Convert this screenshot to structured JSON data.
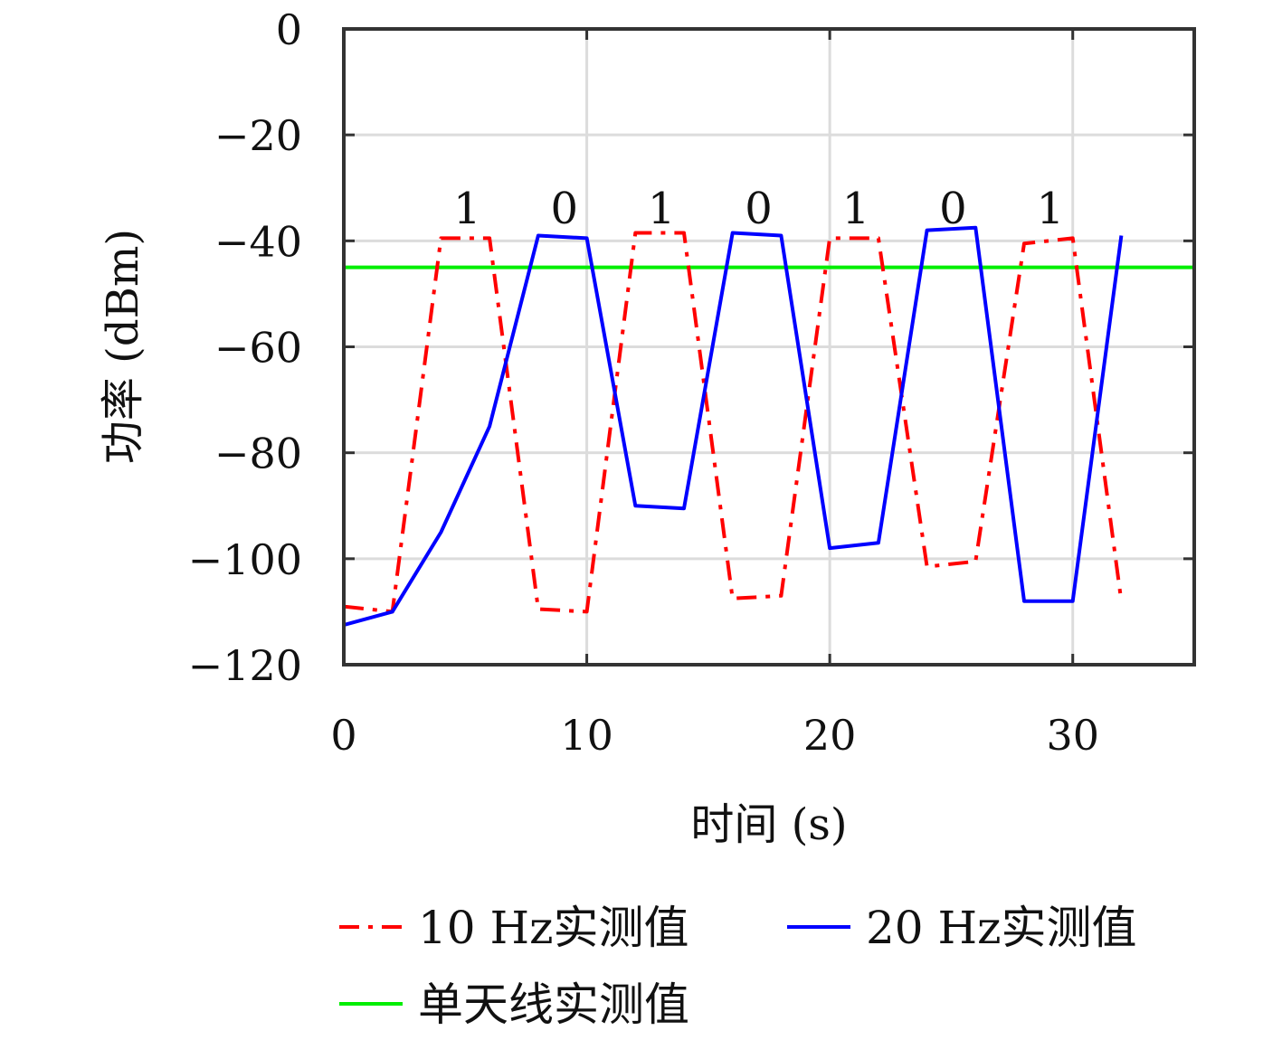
{
  "chart_data": {
    "type": "line",
    "xlabel": "时间 (s)",
    "ylabel": "功率 (dBm)",
    "xlim": [
      0,
      35
    ],
    "ylim": [
      -120,
      0
    ],
    "xticks": [
      0,
      10,
      20,
      30
    ],
    "yticks": [
      0,
      -20,
      -40,
      -60,
      -80,
      -100,
      -120
    ],
    "grid": true,
    "legend_position": "bottom",
    "series": [
      {
        "name": "10 Hz实测值",
        "color": "#ff0000",
        "style": "dashdot",
        "x": [
          0,
          2,
          4,
          6,
          8,
          10,
          12,
          14,
          16,
          18,
          20,
          22,
          24,
          26,
          28,
          30,
          32
        ],
        "y": [
          -109,
          -110,
          -39.5,
          -39.5,
          -109.5,
          -110,
          -38.5,
          -38.5,
          -107.5,
          -107,
          -39.5,
          -39.5,
          -101.5,
          -100.5,
          -40.5,
          -39.5,
          -108
        ]
      },
      {
        "name": "20 Hz实测值",
        "color": "#0000ff",
        "style": "solid",
        "x": [
          0,
          2,
          4,
          6,
          8,
          10,
          12,
          14,
          16,
          18,
          20,
          22,
          24,
          26,
          28,
          30,
          32
        ],
        "y": [
          -112.5,
          -110,
          -95,
          -75,
          -39,
          -39.5,
          -90,
          -90.5,
          -38.5,
          -39,
          -98,
          -97,
          -38,
          -37.5,
          -108,
          -108,
          -39
        ]
      },
      {
        "name": "单天线实测值",
        "color": "#00ee00",
        "style": "solid",
        "x": [
          0,
          35
        ],
        "y": [
          -45,
          -45
        ]
      }
    ],
    "annotations": [
      {
        "text": "1",
        "x": 5,
        "y": -34
      },
      {
        "text": "0",
        "x": 9,
        "y": -34
      },
      {
        "text": "1",
        "x": 13,
        "y": -34
      },
      {
        "text": "0",
        "x": 17,
        "y": -34
      },
      {
        "text": "1",
        "x": 21,
        "y": -34
      },
      {
        "text": "0",
        "x": 25,
        "y": -34
      },
      {
        "text": "1",
        "x": 29,
        "y": -34
      }
    ]
  }
}
